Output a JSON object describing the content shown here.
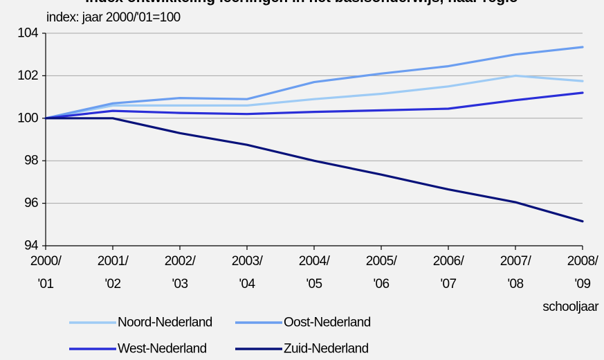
{
  "chart_data": {
    "type": "line",
    "title": "Index ontwikkeling leerlingen in het basisonderwijs, naar regio",
    "ylabel": "index: jaar 2000/'01=100",
    "xlabel": "schooljaar",
    "ylim": [
      94,
      104
    ],
    "yticks": [
      94,
      96,
      98,
      100,
      102,
      104
    ],
    "grid": true,
    "legend_position": "bottom",
    "categories": [
      {
        "top": "2000/",
        "bottom": "'01"
      },
      {
        "top": "2001/",
        "bottom": "'02"
      },
      {
        "top": "2002/",
        "bottom": "'03"
      },
      {
        "top": "2003/",
        "bottom": "'04"
      },
      {
        "top": "2004/",
        "bottom": "'05"
      },
      {
        "top": "2005/",
        "bottom": "'06"
      },
      {
        "top": "2006/",
        "bottom": "'07"
      },
      {
        "top": "2007/",
        "bottom": "'08"
      },
      {
        "top": "2008/",
        "bottom": "'09"
      }
    ],
    "series": [
      {
        "name": "Noord-Nederland",
        "color": "#9ecbf5",
        "values": [
          100,
          100.6,
          100.6,
          100.6,
          100.9,
          101.15,
          101.5,
          102.0,
          101.75
        ]
      },
      {
        "name": "Oost-Nederland",
        "color": "#6b9ef0",
        "values": [
          100,
          100.7,
          100.95,
          100.9,
          101.7,
          102.1,
          102.45,
          103.0,
          103.35
        ]
      },
      {
        "name": "West-Nederland",
        "color": "#2a2ed8",
        "values": [
          100,
          100.35,
          100.25,
          100.2,
          100.3,
          100.37,
          100.45,
          100.85,
          101.2
        ]
      },
      {
        "name": "Zuid-Nederland",
        "color": "#08127a",
        "values": [
          100,
          100,
          99.3,
          98.75,
          98.0,
          97.35,
          96.65,
          96.05,
          95.15
        ]
      }
    ]
  }
}
